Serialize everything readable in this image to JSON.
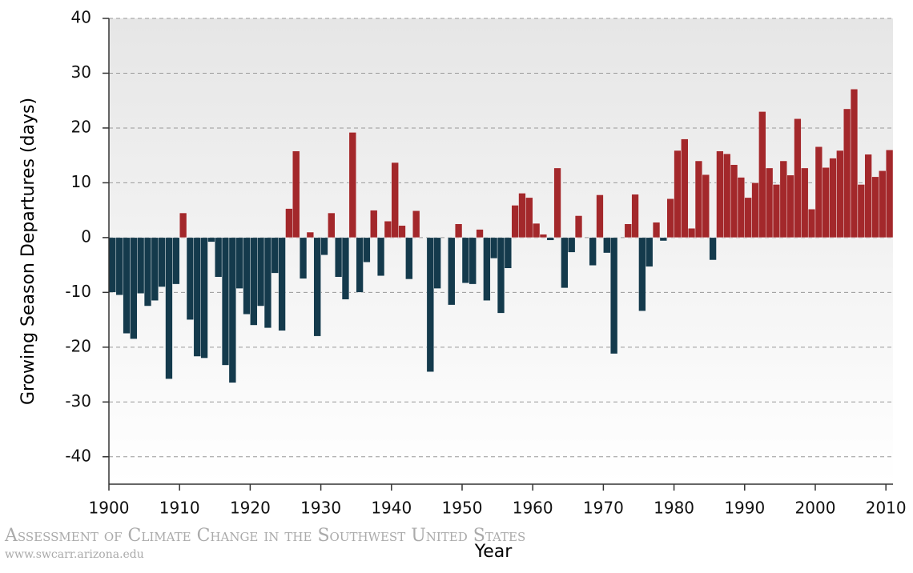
{
  "chart_data": {
    "type": "bar",
    "y_label": "Growing Season Departures (days)",
    "x_label": "Year",
    "source": "Assessment of Climate Change in the Southwest United States",
    "url": "www.swcarr.arizona.edu",
    "x": [
      1900,
      1901,
      1902,
      1903,
      1904,
      1905,
      1906,
      1907,
      1908,
      1909,
      1910,
      1911,
      1912,
      1913,
      1914,
      1915,
      1916,
      1917,
      1918,
      1919,
      1920,
      1921,
      1922,
      1923,
      1924,
      1925,
      1926,
      1927,
      1928,
      1929,
      1930,
      1931,
      1932,
      1933,
      1934,
      1935,
      1936,
      1937,
      1938,
      1939,
      1940,
      1941,
      1942,
      1943,
      1944,
      1945,
      1946,
      1947,
      1948,
      1949,
      1950,
      1951,
      1952,
      1953,
      1954,
      1955,
      1956,
      1957,
      1958,
      1959,
      1960,
      1961,
      1962,
      1963,
      1964,
      1965,
      1966,
      1967,
      1968,
      1969,
      1970,
      1971,
      1972,
      1973,
      1974,
      1975,
      1976,
      1977,
      1978,
      1979,
      1980,
      1981,
      1982,
      1983,
      1984,
      1985,
      1986,
      1987,
      1988,
      1989,
      1990,
      1991,
      1992,
      1993,
      1994,
      1995,
      1996,
      1997,
      1998,
      1999,
      2000,
      2001,
      2002,
      2003,
      2004,
      2005,
      2006,
      2007,
      2008,
      2009,
      2010
    ],
    "values": [
      -10,
      -10.5,
      -17.5,
      -18.5,
      -10.2,
      -12.5,
      -11.5,
      -9,
      -25.8,
      -8.5,
      4.5,
      -15,
      -21.7,
      -22,
      -0.8,
      -7.2,
      -23.3,
      -26.5,
      -9.3,
      -14,
      -16,
      -12.5,
      -16.5,
      -6.5,
      -17,
      5.3,
      15.8,
      -7.5,
      1,
      -18,
      -3.2,
      4.5,
      -7.2,
      -11.3,
      19.2,
      -10,
      -4.5,
      5,
      -7,
      3,
      13.7,
      2.2,
      -7.6,
      4.9,
      0,
      -24.5,
      -9.3,
      0,
      -12.3,
      2.5,
      -8.3,
      -8.5,
      1.5,
      -11.5,
      -3.8,
      -13.8,
      -5.6,
      5.9,
      8.1,
      7.3,
      2.6,
      0.6,
      -0.5,
      12.7,
      -9.2,
      -2.7,
      4,
      0,
      -5.1,
      7.8,
      -2.8,
      -21.2,
      0,
      2.5,
      7.9,
      -13.4,
      -5.3,
      2.8,
      -0.6,
      7.1,
      15.9,
      18,
      1.7,
      14,
      11.5,
      -4.1,
      15.8,
      15.3,
      13.3,
      11,
      7.3,
      10,
      23,
      12.7,
      9.7,
      14,
      11.4,
      21.7,
      12.7,
      5.2,
      16.6,
      12.8,
      14.5,
      15.9,
      23.5,
      27.1,
      9.7,
      15.2,
      11.1,
      12.2,
      16
    ],
    "positive_color": "#a3282b",
    "negative_color": "#143a4c",
    "xlim": [
      1900,
      2011
    ],
    "xticks": [
      1900,
      1910,
      1920,
      1930,
      1940,
      1950,
      1960,
      1970,
      1980,
      1990,
      2000,
      2010
    ],
    "ylim": [
      -45,
      40
    ],
    "yticks": [
      -40,
      -30,
      -20,
      -10,
      0,
      10,
      20,
      30,
      40
    ],
    "grid": true
  }
}
